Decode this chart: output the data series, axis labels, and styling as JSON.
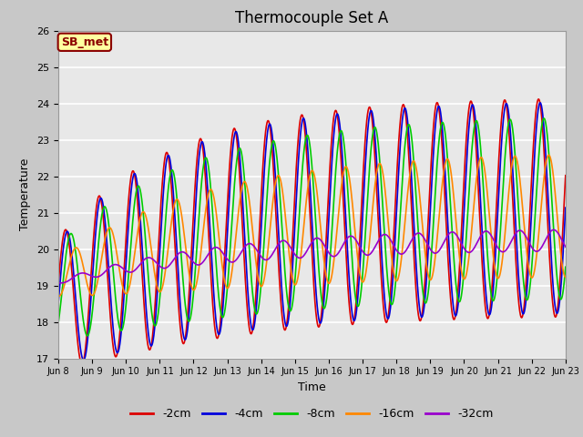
{
  "title": "Thermocouple Set A",
  "xlabel": "Time",
  "ylabel": "Temperature",
  "xlim": [
    0,
    15
  ],
  "ylim": [
    17.0,
    26.0
  ],
  "yticks": [
    17.0,
    18.0,
    19.0,
    20.0,
    21.0,
    22.0,
    23.0,
    24.0,
    25.0,
    26.0
  ],
  "xtick_labels": [
    "Jun 8",
    "Jun 9",
    "Jun 10",
    "Jun 11",
    "Jun 12",
    "Jun 13",
    "Jun 14",
    "Jun 15",
    "Jun 16",
    "Jun 17",
    "Jun 18",
    "Jun 19",
    "Jun 20",
    "Jun 21",
    "Jun 22",
    "Jun 23"
  ],
  "annotation_text": "SB_met",
  "annotation_bg": "#ffffa0",
  "annotation_border": "#8b0000",
  "annotation_text_color": "#8b0000",
  "fig_bg": "#c8c8c8",
  "plot_bg": "#e8e8e8",
  "lines": [
    {
      "label": "-2cm",
      "color": "#dd0000",
      "lw": 1.2
    },
    {
      "label": "-4cm",
      "color": "#0000dd",
      "lw": 1.2
    },
    {
      "label": "-8cm",
      "color": "#00cc00",
      "lw": 1.2
    },
    {
      "label": "-16cm",
      "color": "#ff8800",
      "lw": 1.2
    },
    {
      "label": "-32cm",
      "color": "#9900cc",
      "lw": 1.2
    }
  ],
  "legend_ncol": 5,
  "title_fontsize": 12
}
